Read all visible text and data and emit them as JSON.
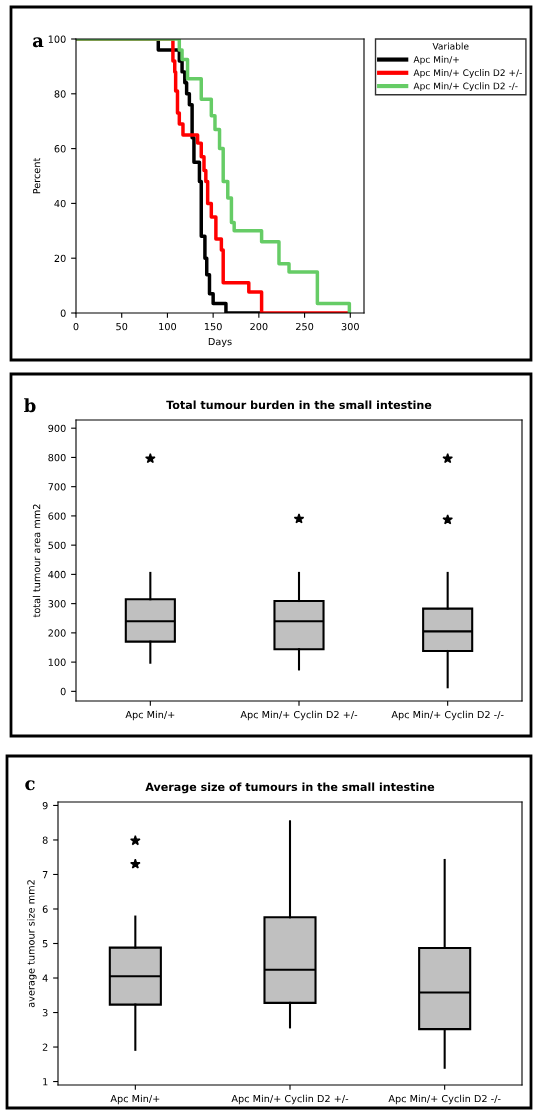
{
  "chart_data": [
    {
      "type": "step",
      "xlabel": "Days",
      "ylabel": "Percent",
      "legend_title": "Variable",
      "legend": "top right",
      "grid": false,
      "annotations": [
        "a"
      ],
      "xlim": [
        0,
        315
      ],
      "xticks": [
        0,
        50,
        100,
        150,
        200,
        250,
        300
      ],
      "ylim": [
        0,
        100
      ],
      "yticks": [
        0,
        20,
        40,
        60,
        80,
        100
      ],
      "series": [
        {
          "name": "Apc Min/+",
          "color": "#000000",
          "x": [
            0,
            90,
            113,
            116,
            119,
            121,
            124,
            127,
            129,
            135,
            137,
            141,
            143,
            146,
            150,
            164,
            200
          ],
          "values": [
            100,
            96,
            92,
            88,
            84,
            80,
            76,
            64,
            55,
            48,
            28,
            20,
            14,
            7,
            3.5,
            0,
            0
          ]
        },
        {
          "name": "Apc Min/+ Cyclin D2 +/-",
          "color": "#ff0000",
          "x": [
            0,
            106,
            108,
            109,
            111,
            113,
            117,
            133,
            137,
            140,
            142,
            144,
            148,
            153,
            159,
            161,
            189,
            203,
            296
          ],
          "values": [
            100,
            92,
            88,
            81,
            73,
            69,
            65,
            62,
            57,
            52,
            48,
            40,
            35,
            27,
            23,
            11,
            7.7,
            0,
            0
          ]
        },
        {
          "name": "Apc Min/+ Cyclin D2 -/-",
          "color": "#66cc66",
          "x": [
            0,
            113,
            116,
            122,
            137,
            148,
            152,
            157,
            161,
            166,
            170,
            173,
            203,
            222,
            233,
            264,
            299
          ],
          "values": [
            100,
            96,
            92.5,
            85.5,
            78,
            72,
            67,
            60,
            48,
            42,
            33,
            30,
            26,
            18,
            15,
            3.5,
            0
          ]
        }
      ]
    },
    {
      "type": "box",
      "title": "Total tumour burden in the small intestine",
      "ylabel": "total tumour area mm2",
      "annotations": [
        "b"
      ],
      "grid": false,
      "categories": [
        "Apc Min/+",
        "Apc Min/+ Cyclin D2 +/-",
        "Apc Min/+ Cyclin D2 -/-"
      ],
      "color": "#c0c0c0",
      "marker": "star",
      "ylim": [
        -33,
        928
      ],
      "yticks": [
        0,
        100,
        200,
        300,
        400,
        500,
        600,
        700,
        800,
        900
      ],
      "boxes": [
        {
          "low": 98,
          "q1": 170,
          "median": 240,
          "q3": 315,
          "high": 405,
          "outliers": [
            796
          ]
        },
        {
          "low": 75,
          "q1": 144,
          "median": 240,
          "q3": 309,
          "high": 405,
          "outliers": [
            590
          ]
        },
        {
          "low": 14,
          "q1": 138,
          "median": 205,
          "q3": 283,
          "high": 405,
          "outliers": [
            587,
            796
          ]
        }
      ]
    },
    {
      "type": "box",
      "title": "Average size of tumours in the small intestine",
      "ylabel": "average tumour size mm2",
      "annotations": [
        "c"
      ],
      "grid": false,
      "categories": [
        "Apc Min/+",
        "Apc Min/+ Cyclin D2 +/-",
        "Apc Min/+ Cyclin D2 -/-"
      ],
      "color": "#c0c0c0",
      "marker": "star",
      "ylim": [
        0.9,
        9.1
      ],
      "yticks": [
        1,
        2,
        3,
        4,
        5,
        6,
        7,
        8,
        9
      ],
      "boxes": [
        {
          "low": 1.92,
          "q1": 3.23,
          "median": 4.05,
          "q3": 4.88,
          "high": 5.78,
          "outliers": [
            7.3,
            7.98
          ]
        },
        {
          "low": 2.57,
          "q1": 3.28,
          "median": 4.24,
          "q3": 5.76,
          "high": 8.54
        },
        {
          "low": 1.4,
          "q1": 2.52,
          "median": 3.58,
          "q3": 4.87,
          "high": 7.42
        }
      ]
    }
  ]
}
